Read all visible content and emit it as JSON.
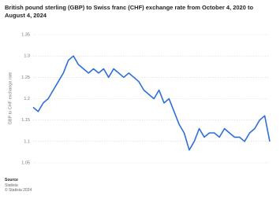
{
  "chart_data": {
    "type": "line",
    "title": "British pound sterling (GBP) to Swiss franc (CHF) exchange rate from October 4, 2020 to August 4, 2024",
    "y_label": "GBP to CHF exchange rate",
    "categories": [
      null,
      null,
      null,
      null,
      null,
      null,
      null,
      null,
      null,
      null,
      null,
      null,
      null,
      null,
      null,
      null,
      null,
      null,
      null,
      null,
      null,
      null,
      null,
      null,
      null,
      null,
      null,
      null,
      null,
      null,
      null,
      null,
      null,
      null,
      null,
      null,
      null,
      null,
      null,
      null,
      null,
      null,
      null,
      null,
      null,
      null,
      null,
      null
    ],
    "values": [
      1.18,
      1.17,
      1.19,
      1.2,
      1.22,
      1.24,
      1.26,
      1.29,
      1.3,
      1.28,
      1.27,
      1.26,
      1.27,
      1.26,
      1.27,
      1.25,
      1.27,
      1.26,
      1.25,
      1.26,
      1.25,
      1.24,
      1.22,
      1.21,
      1.2,
      1.22,
      1.19,
      1.2,
      1.17,
      1.14,
      1.12,
      1.08,
      1.1,
      1.13,
      1.11,
      1.12,
      1.12,
      1.11,
      1.13,
      1.12,
      1.11,
      1.11,
      1.1,
      1.12,
      1.13,
      1.15,
      1.16,
      1.1
    ],
    "color": "#2f6fd6",
    "ylim": [
      1.05,
      1.35
    ],
    "yticks": [
      1.05,
      1.1,
      1.15,
      1.2,
      1.25,
      1.3,
      1.35
    ],
    "grid": true,
    "source_label": "Source",
    "source": "Statista",
    "copyright": "© Statista 2024"
  }
}
